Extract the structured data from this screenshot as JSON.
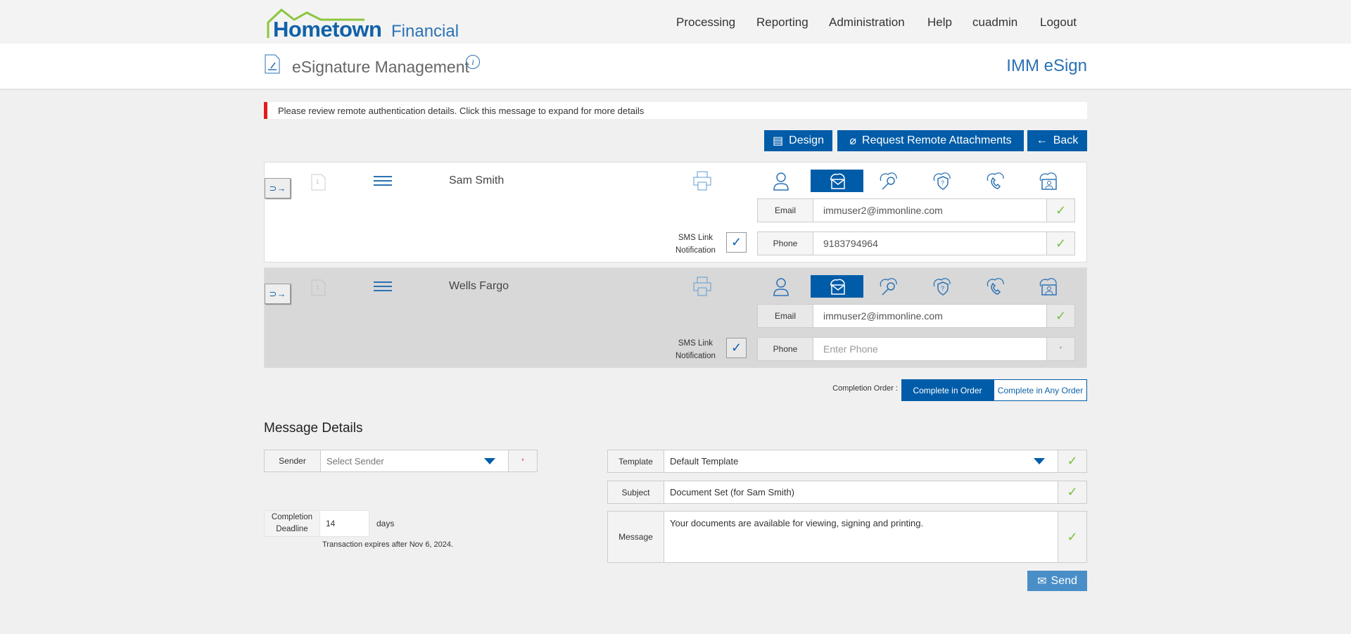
{
  "brand": {
    "name_bold": "Hometown",
    "name_light": "Financial"
  },
  "nav": [
    "Processing",
    "Reporting",
    "Administration",
    "Help",
    "cuadmin",
    "Logout"
  ],
  "header": {
    "title": "eSignature Management",
    "product": "IMM eSign"
  },
  "alert": "Please review remote authentication details. Click this message to expand for more details",
  "toolbar": {
    "design": "Design",
    "request": "Request Remote Attachments",
    "back": "Back"
  },
  "signers": [
    {
      "name": "Sam Smith",
      "email_label": "Email",
      "email": "immuser2@immonline.com",
      "phone_label": "Phone",
      "phone": "9183794964",
      "phone_placeholder": "",
      "sms_label_1": "SMS Link",
      "sms_label_2": "Notification",
      "selected_auth": "email"
    },
    {
      "name": "Wells Fargo",
      "email_label": "Email",
      "email": "immuser2@immonline.com",
      "phone_label": "Phone",
      "phone": "",
      "phone_placeholder": "Enter Phone",
      "sms_label_1": "SMS Link",
      "sms_label_2": "Notification",
      "selected_auth": "email"
    }
  ],
  "completion": {
    "label": "Completion Order :",
    "in_order": "Complete in Order",
    "any_order": "Complete in Any Order",
    "selected": "Complete in Order"
  },
  "message": {
    "heading": "Message Details",
    "sender_label": "Sender",
    "sender_placeholder": "Select Sender",
    "required": "*",
    "deadline_label_1": "Completion",
    "deadline_label_2": "Deadline",
    "deadline": "14",
    "days": "days",
    "expires": "Transaction expires after Nov 6, 2024.",
    "template_label": "Template",
    "template": "Default Template",
    "subject_label": "Subject",
    "subject": "Document Set (for Sam Smith)",
    "message_label": "Message",
    "message": "Your documents are available for viewing, signing and printing.",
    "send": "Send"
  },
  "colors": {
    "primary": "#005ca8",
    "alert": "#e41b1b",
    "check": "#7cbf48"
  }
}
